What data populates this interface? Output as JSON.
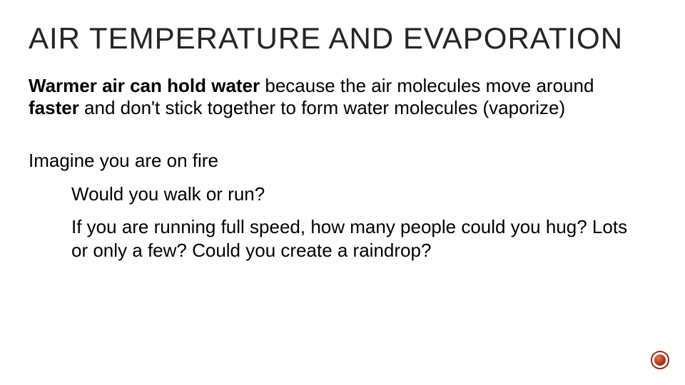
{
  "slide": {
    "title": "AIR TEMPERATURE AND EVAPORATION",
    "title_color": "#262626",
    "title_fontsize": 42,
    "title_letter_spacing": 1,
    "body_color": "#000000",
    "body_fontsize": 26,
    "background_color": "#ffffff",
    "paragraph1": {
      "seg1_bold": "Warmer air can hold water",
      "seg2": " because the air molecules move around ",
      "seg3_bold": "faster",
      "seg4": " and don't stick together to form water molecules (vaporize)"
    },
    "paragraph2": "Imagine you are on fire",
    "paragraph3": "Would you walk or run?",
    "paragraph4": "If you are running full speed, how many people could you hug? Lots or only a few? Could you create a raindrop?"
  },
  "decor": {
    "bullet_outer_border": "#8a2f1a",
    "bullet_inner_light": "#e87850",
    "bullet_inner_mid": "#b0391a",
    "bullet_inner_dark": "#7a230e"
  }
}
